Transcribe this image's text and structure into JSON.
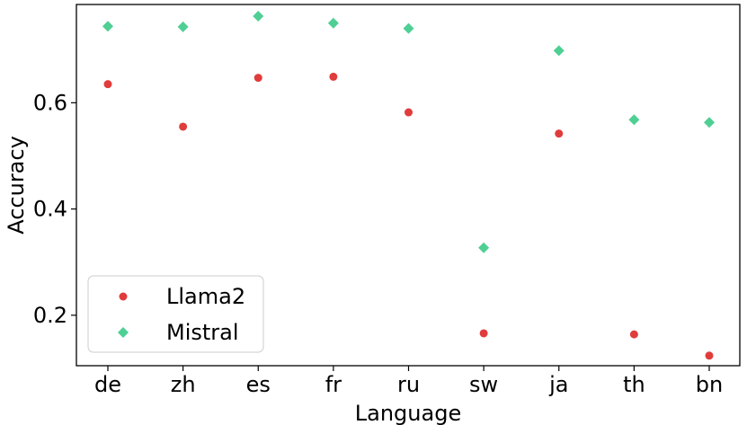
{
  "chart_data": {
    "type": "scatter",
    "title": "",
    "xlabel": "Language",
    "ylabel": "Accuracy",
    "categories": [
      "de",
      "zh",
      "es",
      "fr",
      "ru",
      "sw",
      "ja",
      "th",
      "bn"
    ],
    "ylim": [
      0.105,
      0.785
    ],
    "yticks": [
      0.2,
      0.4,
      0.6
    ],
    "ytick_labels": [
      "0.2",
      "0.4",
      "0.6"
    ],
    "grid": false,
    "legend_position": "lower-left",
    "series": [
      {
        "name": "Llama2",
        "marker": "circle",
        "color": "#e03c3c",
        "values": [
          0.635,
          0.555,
          0.647,
          0.649,
          0.582,
          0.166,
          0.542,
          0.164,
          0.124
        ]
      },
      {
        "name": "Mistral",
        "marker": "diamond",
        "color": "#4fcf94",
        "values": [
          0.744,
          0.743,
          0.763,
          0.75,
          0.74,
          0.327,
          0.698,
          0.568,
          0.563
        ]
      }
    ]
  }
}
